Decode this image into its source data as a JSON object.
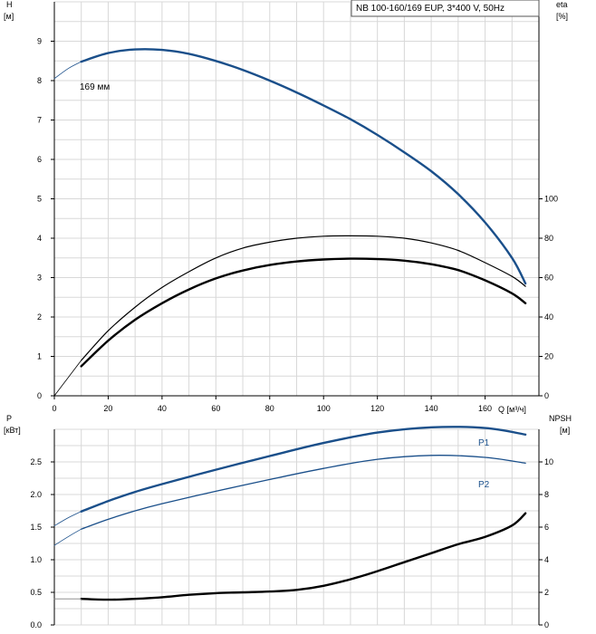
{
  "chart_data": [
    {
      "type": "line",
      "panel": "head-efficiency",
      "title": "NB 100-160/169 EUP, 3*400 V, 50Hz",
      "ylabel": "H",
      "yunit": "[м]",
      "y2label": "eta",
      "y2unit": "[%]",
      "xlabel": "Q [м³/ч]",
      "xlim": [
        0,
        180
      ],
      "ylim": [
        0,
        10
      ],
      "y2lim": [
        0,
        200
      ],
      "xticks": [
        "0",
        "20",
        "40",
        "60",
        "80",
        "100",
        "120",
        "140",
        "160"
      ],
      "yticks": [
        "0",
        "1",
        "2",
        "3",
        "4",
        "5",
        "6",
        "7",
        "8",
        "9"
      ],
      "y2ticks": [
        "0",
        "20",
        "40",
        "60",
        "80",
        "100"
      ],
      "grid": true,
      "annotation": "169 мм",
      "series": [
        {
          "role": "head-extension",
          "color": "#1a4f8a",
          "axis": "left",
          "x": [
            0,
            5,
            10
          ],
          "y": [
            8.05,
            8.3,
            8.48
          ]
        },
        {
          "role": "head",
          "color": "#1a4f8a",
          "axis": "left",
          "x": [
            10,
            20,
            30,
            40,
            50,
            60,
            70,
            80,
            90,
            100,
            110,
            120,
            130,
            140,
            150,
            160,
            170,
            175
          ],
          "y": [
            8.48,
            8.7,
            8.79,
            8.78,
            8.68,
            8.5,
            8.27,
            8.0,
            7.7,
            7.37,
            7.02,
            6.62,
            6.18,
            5.7,
            5.12,
            4.4,
            3.5,
            2.85
          ]
        },
        {
          "role": "efficiency-extension",
          "color": "#000000",
          "axis": "right",
          "x": [
            0,
            5,
            10
          ],
          "y": [
            0,
            9,
            18
          ]
        },
        {
          "role": "efficiency-thin",
          "color": "#000000",
          "axis": "right",
          "x": [
            10,
            20,
            30,
            40,
            50,
            60,
            70,
            80,
            90,
            100,
            110,
            120,
            130,
            140,
            150,
            160,
            170,
            175
          ],
          "y": [
            18,
            33,
            45,
            55,
            63,
            70,
            75,
            78,
            80,
            81,
            81.2,
            81,
            80,
            77.6,
            73.8,
            67.6,
            60.6,
            55.6
          ]
        },
        {
          "role": "efficiency-bold",
          "color": "#000000",
          "axis": "right",
          "x": [
            10,
            20,
            30,
            40,
            50,
            60,
            70,
            80,
            90,
            100,
            110,
            120,
            130,
            140,
            150,
            160,
            170,
            175
          ],
          "y": [
            15,
            28,
            38.6,
            47,
            54,
            59.6,
            63.6,
            66.4,
            68.2,
            69.2,
            69.6,
            69.4,
            68.6,
            66.8,
            63.8,
            58.6,
            52,
            47
          ]
        }
      ]
    },
    {
      "type": "line",
      "panel": "power-npsh",
      "ylabel": "P",
      "yunit": "[кВт]",
      "y2label": "NPSH",
      "y2unit": "[м]",
      "xlim": [
        0,
        180
      ],
      "ylim": [
        0,
        3.0
      ],
      "y2lim": [
        0,
        12
      ],
      "yticks": [
        "0.0",
        "0.5",
        "1.0",
        "1.5",
        "2.0",
        "2.5"
      ],
      "y2ticks": [
        "0",
        "2",
        "4",
        "6",
        "8",
        "10"
      ],
      "grid": true,
      "series": [
        {
          "name": "P1",
          "color": "#1a4f8a",
          "axis": "left",
          "x": [
            10,
            20,
            30,
            40,
            60,
            80,
            100,
            120,
            140,
            160,
            175
          ],
          "y": [
            1.74,
            1.9,
            2.04,
            2.16,
            2.38,
            2.59,
            2.79,
            2.95,
            3.03,
            3.02,
            2.92
          ]
        },
        {
          "role": "P1-extension",
          "color": "#1a4f8a",
          "axis": "left",
          "x": [
            0,
            5,
            10
          ],
          "y": [
            1.52,
            1.64,
            1.74
          ]
        },
        {
          "name": "P2",
          "color": "#1a4f8a",
          "axis": "left",
          "x": [
            10,
            20,
            30,
            40,
            60,
            80,
            100,
            120,
            140,
            160,
            175
          ],
          "y": [
            1.47,
            1.62,
            1.75,
            1.86,
            2.05,
            2.23,
            2.4,
            2.54,
            2.6,
            2.57,
            2.48
          ]
        },
        {
          "role": "P2-extension",
          "color": "#1a4f8a",
          "axis": "left",
          "x": [
            0,
            5,
            10
          ],
          "y": [
            1.22,
            1.35,
            1.47
          ]
        },
        {
          "role": "npsh",
          "color": "#000000",
          "axis": "right",
          "x": [
            10,
            20,
            30,
            40,
            50,
            60,
            70,
            80,
            90,
            100,
            110,
            120,
            130,
            140,
            150,
            160,
            170,
            175
          ],
          "y": [
            1.6,
            1.55,
            1.6,
            1.7,
            1.85,
            1.95,
            2.0,
            2.05,
            2.15,
            2.4,
            2.8,
            3.3,
            3.85,
            4.4,
            4.95,
            5.4,
            6.1,
            6.85
          ]
        },
        {
          "role": "npsh-extension",
          "color": "#808080",
          "axis": "right",
          "x": [
            0,
            5,
            10
          ],
          "y": [
            1.6,
            1.6,
            1.6
          ]
        }
      ]
    }
  ]
}
